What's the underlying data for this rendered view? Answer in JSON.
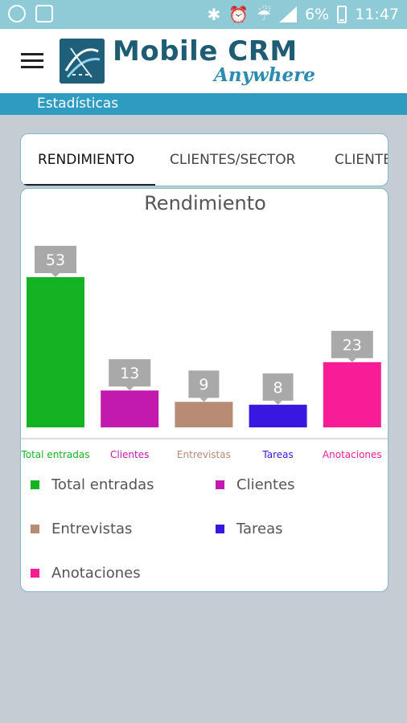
{
  "status_bar": {
    "battery": "6%",
    "time": "11:47",
    "icons": [
      "app-notification-icon",
      "gallery-icon",
      "bluetooth-icon",
      "alarm-icon",
      "wifi-icon",
      "signal-icon",
      "battery-icon"
    ]
  },
  "app_bar": {
    "logo_main": "Mobile CRM",
    "logo_sub": "Anywhere",
    "menu_icon": "hamburger-icon"
  },
  "section": {
    "title": "Estadísticas"
  },
  "tabs": [
    {
      "label": "RENDIMIENTO",
      "active": true
    },
    {
      "label": "CLIENTES/SECTOR",
      "active": false
    },
    {
      "label": "CLIENTES/ESTADO",
      "active": false
    }
  ],
  "chart_data": {
    "type": "bar",
    "title": "Rendimiento",
    "categories": [
      "Total entradas",
      "Clientes",
      "Entrevistas",
      "Tareas",
      "Anotaciones"
    ],
    "values": [
      53,
      13,
      9,
      8,
      23
    ],
    "colors": [
      "#13b324",
      "#c21aaf",
      "#b98a74",
      "#3a17e0",
      "#f81c96"
    ],
    "ylim": [
      0,
      53
    ],
    "grid": false,
    "legend_position": "bottom"
  },
  "colors": {
    "status_bar": "#8fcad7",
    "subheader": "#2e9bc0",
    "background": "#c6ccd3",
    "card_border": "#7fb8cf",
    "tooltip": "#a9a9a9"
  }
}
